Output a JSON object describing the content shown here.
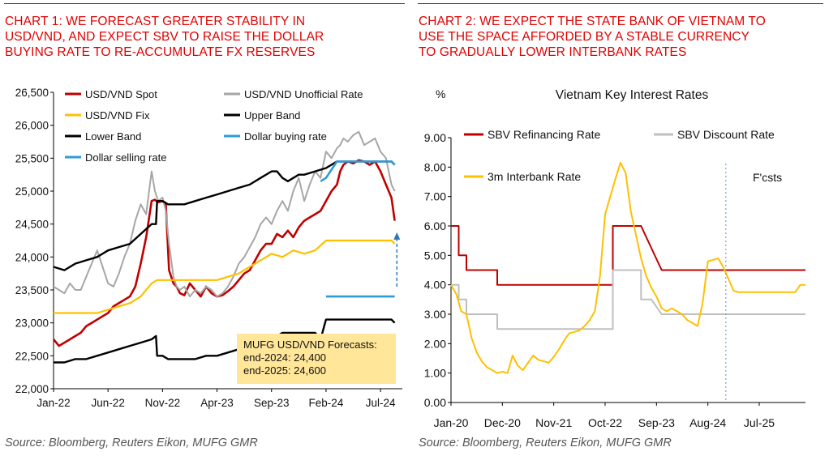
{
  "chart1": {
    "title_lines": [
      "CHART 1: WE FORECAST GREATER STABILITY IN",
      "USD/VND, AND EXPECT SBV TO RAISE THE DOLLAR",
      "BUYING RATE TO RE-ACCUMULATE FX RESERVES"
    ],
    "source": "Source: Bloomberg, Reuters Eikon, MUFG GMR",
    "forecast_box": {
      "lines": [
        "MUFG USD/VND Forecasts:",
        "end-2024: 24,400",
        "end-2025: 24,600"
      ],
      "color": "#ffe699"
    }
  },
  "chart2": {
    "title_lines": [
      "CHART 2: WE EXPECT THE STATE BANK OF VIETNAM TO",
      "USE THE SPACE AFFORDED BY A STABLE CURRENCY",
      "TO GRADUALLY LOWER INTERBANK RATES"
    ],
    "source": "Source: Bloomberg, Reuters Eikon, MUFG GMR",
    "forecast_label": "F'csts"
  },
  "chart_data": [
    {
      "type": "line",
      "title": "",
      "xlabel": "",
      "ylabel": "",
      "ylim": [
        22000,
        26500
      ],
      "yticks": [
        22000,
        22500,
        23000,
        23500,
        24000,
        24500,
        25000,
        25500,
        26000,
        26500
      ],
      "ytick_labels": [
        "22,000",
        "22,500",
        "23,000",
        "23,500",
        "24,000",
        "24,500",
        "25,000",
        "25,500",
        "26,000",
        "26,500"
      ],
      "xlim": [
        0,
        32
      ],
      "xtick_positions": [
        0,
        5,
        10,
        15,
        20,
        25,
        30
      ],
      "xtick_labels": [
        "Jan-22",
        "Jun-22",
        "Nov-22",
        "Apr-23",
        "Sep-23",
        "Feb-24",
        "Jul-24"
      ],
      "grid": false,
      "legend": "top",
      "series": [
        {
          "name": "USD/VND Spot",
          "color": "#c00000",
          "width": 2.6,
          "x": [
            0,
            0.5,
            1,
            1.5,
            2,
            2.5,
            3,
            3.5,
            4,
            4.5,
            5,
            5.5,
            6,
            6.5,
            7,
            7.5,
            8,
            8.5,
            9,
            9.3,
            9.6,
            10,
            10.3,
            10.6,
            11,
            11.3,
            11.6,
            12,
            12.5,
            13,
            13.5,
            14,
            14.5,
            15,
            15.5,
            16,
            16.5,
            17,
            17.5,
            18,
            18.5,
            19,
            19.5,
            20,
            20.5,
            21,
            21.5,
            22,
            22.5,
            23,
            23.5,
            24,
            24.5,
            25,
            25.5,
            26,
            26.3,
            26.6,
            27,
            27.5,
            28,
            28.5,
            29,
            29.5,
            30,
            30.5,
            31,
            31.3
          ],
          "y": [
            22750,
            22650,
            22700,
            22750,
            22800,
            22850,
            22950,
            23000,
            23050,
            23100,
            23150,
            23250,
            23300,
            23350,
            23400,
            23550,
            23900,
            24300,
            24850,
            24870,
            24830,
            24850,
            24800,
            23800,
            23600,
            23550,
            23450,
            23420,
            23600,
            23500,
            23400,
            23550,
            23450,
            23400,
            23420,
            23480,
            23550,
            23650,
            23750,
            23800,
            23950,
            24100,
            24200,
            24200,
            24350,
            24300,
            24400,
            24300,
            24450,
            24550,
            24600,
            24650,
            24700,
            24850,
            25000,
            25100,
            25300,
            25400,
            25450,
            25420,
            25470,
            25450,
            25400,
            25450,
            25300,
            25100,
            24900,
            24550
          ]
        },
        {
          "name": "USD/VND Unofficial Rate",
          "color": "#a6a6a6",
          "width": 2,
          "x": [
            0,
            0.5,
            1,
            1.5,
            2,
            2.5,
            3,
            3.5,
            4,
            4.5,
            5,
            5.5,
            6,
            6.5,
            7,
            7.5,
            8,
            8.5,
            9,
            9.3,
            9.6,
            10,
            10.3,
            10.6,
            11,
            11.3,
            11.6,
            12,
            12.5,
            13,
            13.5,
            14,
            14.5,
            15,
            15.5,
            16,
            16.5,
            17,
            17.5,
            18,
            18.5,
            19,
            19.5,
            20,
            20.5,
            21,
            21.5,
            22,
            22.5,
            23,
            23.5,
            24,
            24.5,
            25,
            25.5,
            26,
            26.3,
            26.6,
            27,
            27.5,
            28,
            28.5,
            29,
            29.5,
            30,
            30.5,
            31,
            31.3
          ],
          "y": [
            23550,
            23500,
            23450,
            23600,
            23500,
            23500,
            23700,
            23900,
            24100,
            23850,
            23600,
            23550,
            23750,
            24000,
            24200,
            24550,
            24800,
            24650,
            25300,
            25000,
            24850,
            24900,
            24700,
            24200,
            23700,
            23550,
            23500,
            23550,
            23400,
            23500,
            23450,
            23550,
            23500,
            23400,
            23450,
            23550,
            23700,
            23900,
            24000,
            24150,
            24300,
            24500,
            24600,
            24500,
            24700,
            24850,
            24700,
            25000,
            25200,
            24850,
            25100,
            25300,
            25200,
            25600,
            25500,
            25650,
            25700,
            25800,
            25750,
            25850,
            25900,
            25700,
            25750,
            25800,
            25600,
            25500,
            25100,
            25000
          ]
        },
        {
          "name": "USD/VND Fix",
          "color": "#ffc000",
          "width": 2.2,
          "x": [
            0,
            1,
            2,
            3,
            4,
            5,
            6,
            7,
            8,
            9,
            9.5,
            10,
            11,
            12,
            13,
            14,
            15,
            16,
            17,
            18,
            19,
            20,
            21,
            22,
            23,
            24,
            25,
            26,
            27,
            28,
            29,
            30,
            31,
            31.3
          ],
          "y": [
            23150,
            23150,
            23150,
            23150,
            23150,
            23200,
            23250,
            23300,
            23400,
            23600,
            23650,
            23650,
            23650,
            23650,
            23650,
            23650,
            23650,
            23700,
            23750,
            23850,
            23950,
            24050,
            24000,
            24100,
            24050,
            24100,
            24250,
            24250,
            24250,
            24250,
            24250,
            24250,
            24250,
            24200
          ]
        },
        {
          "name": "Upper Band",
          "color": "#000000",
          "width": 2.4,
          "x": [
            0,
            1,
            2,
            3,
            4,
            5,
            6,
            7,
            8,
            9,
            9.4,
            9.5,
            9.8,
            10,
            10.5,
            11,
            12,
            13,
            14,
            15,
            16,
            17,
            18,
            19,
            20,
            20.5,
            21,
            21.5,
            22,
            22.5,
            23,
            24,
            25,
            26,
            27,
            28,
            29,
            30,
            31,
            31.3
          ],
          "y": [
            23850,
            23800,
            23900,
            23950,
            24000,
            24100,
            24150,
            24200,
            24350,
            24500,
            24500,
            24850,
            24850,
            24850,
            24800,
            24800,
            24800,
            24850,
            24900,
            24950,
            25000,
            25050,
            25100,
            25200,
            25300,
            25300,
            25200,
            25150,
            25200,
            25250,
            25250,
            25300,
            25350,
            25450,
            25450,
            25450,
            25450,
            25450,
            25450,
            25400
          ]
        },
        {
          "name": "Lower Band",
          "color": "#000000",
          "width": 2.4,
          "x": [
            0,
            1,
            2,
            3,
            4,
            5,
            6,
            7,
            8,
            9,
            9.4,
            9.5,
            9.8,
            10,
            10.5,
            11,
            12,
            13,
            14,
            15,
            16,
            17,
            18,
            19,
            20,
            21,
            22,
            23,
            24,
            24.5,
            25,
            26,
            27,
            28,
            29,
            30,
            31,
            31.3
          ],
          "y": [
            22400,
            22400,
            22450,
            22450,
            22500,
            22550,
            22600,
            22650,
            22700,
            22750,
            22800,
            22500,
            22500,
            22500,
            22450,
            22450,
            22450,
            22450,
            22500,
            22500,
            22550,
            22600,
            22650,
            22700,
            22750,
            22850,
            22850,
            22850,
            22850,
            22750,
            23050,
            23050,
            23050,
            23050,
            23050,
            23050,
            23050,
            23000
          ]
        },
        {
          "name": "Dollar buying rate",
          "color": "#2e9cd6",
          "width": 2.6,
          "x": [
            25,
            31.3
          ],
          "y": [
            23400,
            23400
          ]
        },
        {
          "name": "Dollar selling rate",
          "color": "#2e9cd6",
          "width": 2.6,
          "x": [
            24.5,
            25,
            26,
            27,
            28,
            29,
            30,
            31,
            31.3
          ],
          "y": [
            25150,
            25200,
            25450,
            25450,
            25450,
            25450,
            25450,
            25450,
            25400
          ]
        }
      ],
      "annotations": [
        {
          "type": "dashed-arrow",
          "color": "#2e75b6",
          "x": 31.5,
          "from": 23550,
          "to": 24350
        }
      ]
    },
    {
      "type": "line",
      "title": "Vietnam Key Interest Rates",
      "xlabel": "",
      "ylabel": "%",
      "ylim": [
        0,
        9
      ],
      "yticks": [
        0,
        1,
        2,
        3,
        4,
        5,
        6,
        7,
        8,
        9
      ],
      "ytick_labels": [
        "0.00",
        "1.00",
        "2.00",
        "3.00",
        "4.00",
        "5.00",
        "6.00",
        "7.00",
        "8.00",
        "9.00"
      ],
      "xlim": [
        0,
        69
      ],
      "xtick_positions": [
        0,
        10,
        20,
        30,
        40,
        50,
        60
      ],
      "xtick_labels": [
        "Jan-20",
        "Dec-20",
        "Nov-21",
        "Oct-22",
        "Sep-23",
        "Aug-24",
        "Jul-25"
      ],
      "grid": false,
      "legend": "top",
      "forecast_start": 53.5,
      "series": [
        {
          "name": "SBV Refinancing Rate",
          "color": "#c00000",
          "width": 2,
          "x": [
            0,
            1.5,
            1.5,
            3,
            3,
            4,
            4,
            9,
            9,
            31.5,
            31.5,
            37,
            41,
            69
          ],
          "y": [
            6,
            6,
            5,
            5,
            4.5,
            4.5,
            4.5,
            4.5,
            4,
            4,
            6,
            6,
            4.5,
            4.5
          ]
        },
        {
          "name": "SBV Discount Rate",
          "color": "#bfbfbf",
          "width": 2,
          "x": [
            0,
            1.5,
            1.5,
            3,
            3,
            9,
            9,
            31.5,
            31.5,
            37,
            37,
            39,
            41,
            69
          ],
          "y": [
            4,
            4,
            3.5,
            3.5,
            3,
            3,
            2.5,
            2.5,
            4.5,
            4.5,
            3.5,
            3.5,
            3,
            3
          ]
        },
        {
          "name": "3m Interbank Rate",
          "color": "#ffc000",
          "width": 2,
          "x": [
            0,
            1,
            2,
            3,
            4,
            5,
            6,
            7,
            8,
            9,
            10,
            11,
            12,
            13,
            14,
            15,
            16,
            17,
            18,
            19,
            20,
            21,
            22,
            23,
            24,
            25,
            26,
            27,
            28,
            29,
            30,
            31,
            32,
            33,
            34,
            35,
            36,
            37,
            38,
            39,
            40,
            41,
            42,
            43,
            44,
            45,
            46,
            47,
            48,
            49,
            50,
            51,
            52,
            53,
            54,
            55,
            56,
            57,
            58,
            59,
            60,
            61,
            62,
            63,
            64,
            65,
            66,
            67,
            68,
            69
          ],
          "y": [
            4,
            3.7,
            3.1,
            3.0,
            2.2,
            1.7,
            1.4,
            1.2,
            1.1,
            1.0,
            1.05,
            1.0,
            1.6,
            1.25,
            1.1,
            1.35,
            1.6,
            1.45,
            1.4,
            1.35,
            1.55,
            1.8,
            2.1,
            2.35,
            2.4,
            2.45,
            2.6,
            2.8,
            3.1,
            4.3,
            6.4,
            7.0,
            7.6,
            8.15,
            7.8,
            6.5,
            5.7,
            4.9,
            4.3,
            3.9,
            3.6,
            3.2,
            3.1,
            3.2,
            3.1,
            3.0,
            2.8,
            2.7,
            2.6,
            3.4,
            4.8,
            4.85,
            4.9,
            4.6,
            4.2,
            3.8,
            3.75,
            3.75,
            3.75,
            3.75,
            3.75,
            3.75,
            3.75,
            3.75,
            3.75,
            3.75,
            3.75,
            3.75,
            4.0,
            4.0
          ]
        }
      ]
    }
  ]
}
